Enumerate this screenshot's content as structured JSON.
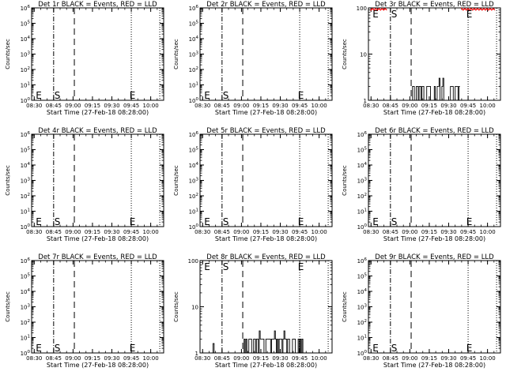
{
  "figure": {
    "background": "#ffffff",
    "axis_color": "#000000",
    "lld_color": "#ff0000"
  },
  "chart_data": [
    {
      "type": "line",
      "title": "Det 1r BLACK = Events, RED = LLD",
      "xlabel": "Start Time (27-Feb-18 08:28:00)",
      "ylabel": "Counts/sec",
      "x_ticks": [
        "08:30",
        "08:45",
        "09:00",
        "09:15",
        "09:30",
        "09:45",
        "10:00"
      ],
      "y_scale": "log",
      "ylim": [
        1,
        1000000
      ],
      "y_ticks": [
        "10^0",
        "10^1",
        "10^2",
        "10^3",
        "10^4",
        "10^5",
        "10^6"
      ],
      "markers": [
        {
          "label": "E",
          "time": "08:30"
        },
        {
          "label": "S",
          "time": "08:48"
        },
        {
          "label": "E",
          "time": "09:46"
        }
      ],
      "vlines": [
        {
          "time": "08:45",
          "style": "dashdot"
        },
        {
          "time": "09:01",
          "style": "dashed"
        },
        {
          "time": "09:45",
          "style": "dotted"
        },
        {
          "time": "10:07",
          "style": "dotted"
        }
      ],
      "series": [],
      "lld": false
    },
    {
      "type": "line",
      "title": "Det 2r BLACK = Events, RED = LLD",
      "xlabel": "Start Time (27-Feb-18 08:28:00)",
      "ylabel": "Counts/sec",
      "x_ticks": [
        "08:30",
        "08:45",
        "09:00",
        "09:15",
        "09:30",
        "09:45",
        "10:00"
      ],
      "y_scale": "log",
      "ylim": [
        1,
        1000000
      ],
      "y_ticks": [
        "10^0",
        "10^1",
        "10^2",
        "10^3",
        "10^4",
        "10^5",
        "10^6"
      ],
      "markers": [
        {
          "label": "E",
          "time": "08:30"
        },
        {
          "label": "S",
          "time": "08:48"
        },
        {
          "label": "E",
          "time": "09:46"
        }
      ],
      "vlines": [
        {
          "time": "08:45",
          "style": "dashdot"
        },
        {
          "time": "09:01",
          "style": "dashed"
        },
        {
          "time": "09:45",
          "style": "dotted"
        },
        {
          "time": "10:07",
          "style": "dotted"
        }
      ],
      "series": [],
      "lld": false
    },
    {
      "type": "line",
      "title": "Det 3r BLACK = Events, RED = LLD",
      "xlabel": "Start Time (27-Feb-18 08:28:00)",
      "ylabel": "Counts/sec",
      "x_ticks": [
        "08:30",
        "08:45",
        "09:00",
        "09:15",
        "09:30",
        "09:45",
        "10:00"
      ],
      "y_scale": "log",
      "ylim": [
        1,
        100
      ],
      "y_ticks": [
        "1",
        "10",
        "100"
      ],
      "markers": [
        {
          "label": "E",
          "time": "08:30"
        },
        {
          "label": "S",
          "time": "08:48"
        },
        {
          "label": "E",
          "time": "09:46"
        }
      ],
      "vlines": [
        {
          "time": "08:45",
          "style": "dashdot"
        },
        {
          "time": "09:01",
          "style": "dashed"
        },
        {
          "time": "09:45",
          "style": "dotted"
        },
        {
          "time": "10:07",
          "style": "dotted"
        }
      ],
      "series": [
        {
          "x_start": "09:02",
          "x_end": "09:38",
          "low": 1,
          "high": 2,
          "peak": 3
        }
      ],
      "lld": true,
      "lld_level": 95
    },
    {
      "type": "line",
      "title": "Det 4r BLACK = Events, RED = LLD",
      "xlabel": "Start Time (27-Feb-18 08:28:00)",
      "ylabel": "Counts/sec",
      "x_ticks": [
        "08:30",
        "08:45",
        "09:00",
        "09:15",
        "09:30",
        "09:45",
        "10:00"
      ],
      "y_scale": "log",
      "ylim": [
        1,
        1000000
      ],
      "y_ticks": [
        "10^0",
        "10^1",
        "10^2",
        "10^3",
        "10^4",
        "10^5",
        "10^6"
      ],
      "markers": [
        {
          "label": "E",
          "time": "08:30"
        },
        {
          "label": "S",
          "time": "08:48"
        },
        {
          "label": "E",
          "time": "09:46"
        }
      ],
      "vlines": [
        {
          "time": "08:45",
          "style": "dashdot"
        },
        {
          "time": "09:01",
          "style": "dashed"
        },
        {
          "time": "09:45",
          "style": "dotted"
        },
        {
          "time": "10:07",
          "style": "dotted"
        }
      ],
      "series": [],
      "lld": false
    },
    {
      "type": "line",
      "title": "Det 5r BLACK = Events, RED = LLD",
      "xlabel": "Start Time (27-Feb-18 08:28:00)",
      "ylabel": "Counts/sec",
      "x_ticks": [
        "08:30",
        "08:45",
        "09:00",
        "09:15",
        "09:30",
        "09:45",
        "10:00"
      ],
      "y_scale": "log",
      "ylim": [
        1,
        1000000
      ],
      "y_ticks": [
        "10^0",
        "10^1",
        "10^2",
        "10^3",
        "10^4",
        "10^5",
        "10^6"
      ],
      "markers": [
        {
          "label": "E",
          "time": "08:30"
        },
        {
          "label": "S",
          "time": "08:48"
        },
        {
          "label": "E",
          "time": "09:46"
        }
      ],
      "vlines": [
        {
          "time": "08:45",
          "style": "dashdot"
        },
        {
          "time": "09:01",
          "style": "dashed"
        },
        {
          "time": "09:45",
          "style": "dotted"
        },
        {
          "time": "10:07",
          "style": "dotted"
        }
      ],
      "series": [],
      "lld": false
    },
    {
      "type": "line",
      "title": "Det 6r BLACK = Events, RED = LLD",
      "xlabel": "Start Time (27-Feb-18 08:28:00)",
      "ylabel": "Counts/sec",
      "x_ticks": [
        "08:30",
        "08:45",
        "09:00",
        "09:15",
        "09:30",
        "09:45",
        "10:00"
      ],
      "y_scale": "log",
      "ylim": [
        1,
        1000000
      ],
      "y_ticks": [
        "10^0",
        "10^1",
        "10^2",
        "10^3",
        "10^4",
        "10^5",
        "10^6"
      ],
      "markers": [
        {
          "label": "E",
          "time": "08:30"
        },
        {
          "label": "S",
          "time": "08:48"
        },
        {
          "label": "E",
          "time": "09:46"
        }
      ],
      "vlines": [
        {
          "time": "08:45",
          "style": "dashdot"
        },
        {
          "time": "09:01",
          "style": "dashed"
        },
        {
          "time": "09:45",
          "style": "dotted"
        },
        {
          "time": "10:07",
          "style": "dotted"
        }
      ],
      "series": [],
      "lld": false
    },
    {
      "type": "line",
      "title": "Det 7r BLACK = Events, RED = LLD",
      "xlabel": "Start Time (27-Feb-18 08:28:00)",
      "ylabel": "Counts/sec",
      "x_ticks": [
        "08:30",
        "08:45",
        "09:00",
        "09:15",
        "09:30",
        "09:45",
        "10:00"
      ],
      "y_scale": "log",
      "ylim": [
        1,
        1000000
      ],
      "y_ticks": [
        "10^0",
        "10^1",
        "10^2",
        "10^3",
        "10^4",
        "10^5",
        "10^6"
      ],
      "markers": [
        {
          "label": "E",
          "time": "08:30"
        },
        {
          "label": "S",
          "time": "08:48"
        },
        {
          "label": "E",
          "time": "09:46"
        }
      ],
      "vlines": [
        {
          "time": "08:45",
          "style": "dashdot"
        },
        {
          "time": "09:01",
          "style": "dashed"
        },
        {
          "time": "09:45",
          "style": "dotted"
        },
        {
          "time": "10:07",
          "style": "dotted"
        }
      ],
      "series": [],
      "lld": false
    },
    {
      "type": "line",
      "title": "Det 8r BLACK = Events, RED = LLD",
      "xlabel": "Start Time (27-Feb-18 08:28:00)",
      "ylabel": "Counts/sec",
      "x_ticks": [
        "08:30",
        "08:45",
        "09:00",
        "09:15",
        "09:30",
        "09:45",
        "10:00"
      ],
      "y_scale": "log",
      "ylim": [
        1,
        100
      ],
      "y_ticks": [
        "1",
        "10",
        "100"
      ],
      "markers": [
        {
          "label": "E",
          "time": "08:30"
        },
        {
          "label": "S",
          "time": "08:48"
        },
        {
          "label": "E",
          "time": "09:46"
        }
      ],
      "vlines": [
        {
          "time": "08:45",
          "style": "dashdot"
        },
        {
          "time": "09:01",
          "style": "dashed"
        },
        {
          "time": "09:45",
          "style": "dotted"
        },
        {
          "time": "10:07",
          "style": "dotted"
        }
      ],
      "series": [
        {
          "x_start": "09:02",
          "x_end": "09:48",
          "low": 1,
          "high": 2,
          "peak": 3
        }
      ],
      "lld": false
    },
    {
      "type": "line",
      "title": "Det 9r BLACK = Events, RED = LLD",
      "xlabel": "Start Time (27-Feb-18 08:28:00)",
      "ylabel": "Counts/sec",
      "x_ticks": [
        "08:30",
        "08:45",
        "09:00",
        "09:15",
        "09:30",
        "09:45",
        "10:00"
      ],
      "y_scale": "log",
      "ylim": [
        1,
        1000000
      ],
      "y_ticks": [
        "10^0",
        "10^1",
        "10^2",
        "10^3",
        "10^4",
        "10^5",
        "10^6"
      ],
      "markers": [
        {
          "label": "E",
          "time": "08:30"
        },
        {
          "label": "S",
          "time": "08:48"
        },
        {
          "label": "E",
          "time": "09:46"
        }
      ],
      "vlines": [
        {
          "time": "08:45",
          "style": "dashdot"
        },
        {
          "time": "09:01",
          "style": "dashed"
        },
        {
          "time": "09:45",
          "style": "dotted"
        },
        {
          "time": "10:07",
          "style": "dotted"
        }
      ],
      "series": [],
      "lld": false
    }
  ]
}
